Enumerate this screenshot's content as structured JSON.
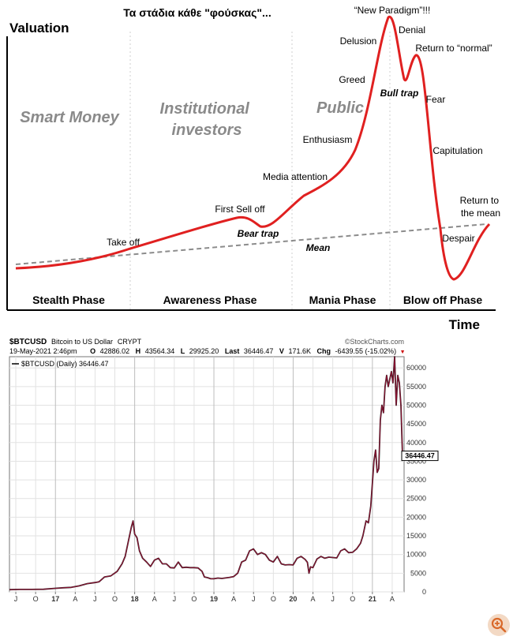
{
  "chart_data": [
    {
      "type": "line",
      "title": "Τα στάδια κάθε \"φούσκας\"...",
      "ylabel": "Valuation",
      "xlabel": "Time",
      "phases": [
        "Stealth Phase",
        "Awareness Phase",
        "Mania Phase",
        "Blow off Phase"
      ],
      "investor_groups": [
        "Smart Money",
        "Institutional investors",
        "Public"
      ],
      "annotations": [
        "Take off",
        "First Sell off",
        "Bear trap",
        "Media attention",
        "Enthusiasm",
        "Greed",
        "Delusion",
        "“New Paradigm”!!!",
        "Denial",
        "Bull trap",
        "Return to “normal”",
        "Fear",
        "Capitulation",
        "Despair",
        "Return to the mean",
        "Mean"
      ],
      "colors": {
        "curve": "#e02020",
        "mean": "#8c8c8c",
        "group_text": "#8a8a8a",
        "divider": "#cfcfcf"
      }
    },
    {
      "type": "line",
      "header": {
        "symbol": "$BTCUSD",
        "name": "Bitcoin to US Dollar",
        "exchange": "CRYPT",
        "source": "©StockCharts.com",
        "date": "19-May-2021 2:46pm",
        "open_label": "O",
        "open": "42886.02",
        "high_label": "H",
        "high": "43564.34",
        "low_label": "L",
        "low": "29925.20",
        "last_label": "Last",
        "last": "36446.47",
        "volume_label": "V",
        "volume": "171.6K",
        "change_label": "Chg",
        "change": "-6439.55 (-15.02%)",
        "change_marker": "▼"
      },
      "legend": "$BTCUSD (Daily) 36446.47",
      "last_value_label": "36446.47",
      "y_ticks": [
        0,
        5000,
        10000,
        15000,
        20000,
        25000,
        30000,
        35000,
        40000,
        45000,
        50000,
        55000,
        60000
      ],
      "ylim": [
        0,
        63000
      ],
      "x_ticks": [
        {
          "label": "J",
          "x": 2016.5,
          "bold": false
        },
        {
          "label": "O",
          "x": 2016.75,
          "bold": false
        },
        {
          "label": "17",
          "x": 2017.0,
          "bold": true
        },
        {
          "label": "A",
          "x": 2017.25,
          "bold": false
        },
        {
          "label": "J",
          "x": 2017.5,
          "bold": false
        },
        {
          "label": "O",
          "x": 2017.75,
          "bold": false
        },
        {
          "label": "18",
          "x": 2018.0,
          "bold": true
        },
        {
          "label": "A",
          "x": 2018.25,
          "bold": false
        },
        {
          "label": "J",
          "x": 2018.5,
          "bold": false
        },
        {
          "label": "O",
          "x": 2018.75,
          "bold": false
        },
        {
          "label": "19",
          "x": 2019.0,
          "bold": true
        },
        {
          "label": "A",
          "x": 2019.25,
          "bold": false
        },
        {
          "label": "J",
          "x": 2019.5,
          "bold": false
        },
        {
          "label": "O",
          "x": 2019.75,
          "bold": false
        },
        {
          "label": "20",
          "x": 2020.0,
          "bold": true
        },
        {
          "label": "A",
          "x": 2020.25,
          "bold": false
        },
        {
          "label": "J",
          "x": 2020.5,
          "bold": false
        },
        {
          "label": "O",
          "x": 2020.75,
          "bold": false
        },
        {
          "label": "21",
          "x": 2021.0,
          "bold": true
        },
        {
          "label": "A",
          "x": 2021.25,
          "bold": false
        }
      ],
      "xlim": [
        2016.42,
        2021.4
      ],
      "series": [
        {
          "name": "$BTCUSD",
          "x": [
            2016.42,
            2016.55,
            2016.7,
            2016.85,
            2017.0,
            2017.1,
            2017.2,
            2017.3,
            2017.4,
            2017.5,
            2017.55,
            2017.62,
            2017.7,
            2017.78,
            2017.84,
            2017.88,
            2017.92,
            2017.96,
            2017.98,
            2018.0,
            2018.03,
            2018.06,
            2018.1,
            2018.15,
            2018.2,
            2018.25,
            2018.3,
            2018.35,
            2018.4,
            2018.45,
            2018.5,
            2018.55,
            2018.6,
            2018.65,
            2018.7,
            2018.75,
            2018.8,
            2018.85,
            2018.88,
            2018.92,
            2018.96,
            2019.0,
            2019.05,
            2019.1,
            2019.2,
            2019.25,
            2019.3,
            2019.35,
            2019.4,
            2019.45,
            2019.5,
            2019.55,
            2019.6,
            2019.65,
            2019.7,
            2019.75,
            2019.8,
            2019.85,
            2019.9,
            2019.95,
            2020.0,
            2020.05,
            2020.1,
            2020.15,
            2020.18,
            2020.2,
            2020.22,
            2020.25,
            2020.3,
            2020.35,
            2020.4,
            2020.45,
            2020.5,
            2020.55,
            2020.6,
            2020.65,
            2020.7,
            2020.75,
            2020.8,
            2020.85,
            2020.88,
            2020.92,
            2020.95,
            2020.98,
            2021.0,
            2021.02,
            2021.04,
            2021.06,
            2021.08,
            2021.1,
            2021.12,
            2021.14,
            2021.16,
            2021.18,
            2021.2,
            2021.22,
            2021.24,
            2021.26,
            2021.28,
            2021.3,
            2021.32,
            2021.34,
            2021.36,
            2021.38
          ],
          "values": [
            600,
            650,
            650,
            700,
            950,
            1100,
            1200,
            1600,
            2200,
            2500,
            2700,
            4000,
            4300,
            5500,
            7500,
            9500,
            13500,
            17500,
            19000,
            15500,
            14500,
            11000,
            9000,
            8000,
            6800,
            8500,
            9000,
            7500,
            7500,
            6500,
            6400,
            8000,
            6500,
            6600,
            6500,
            6500,
            6400,
            5500,
            4000,
            3800,
            3500,
            3500,
            3700,
            3600,
            3900,
            4100,
            5000,
            8000,
            8500,
            11000,
            11500,
            10000,
            10500,
            10000,
            8500,
            8000,
            9500,
            7500,
            7200,
            7300,
            7200,
            9000,
            9500,
            8700,
            7900,
            5000,
            6700,
            6500,
            8800,
            9500,
            9000,
            9300,
            9200,
            9100,
            11000,
            11500,
            10500,
            10600,
            11500,
            13000,
            15000,
            19000,
            18500,
            23000,
            29000,
            35000,
            38000,
            32000,
            33000,
            46000,
            50000,
            48000,
            55000,
            58000,
            55000,
            57000,
            59000,
            56000,
            63000,
            50000,
            58000,
            56000,
            50000,
            36446
          ]
        }
      ],
      "colors": {
        "line": "#8b1030",
        "shadow": "#000000",
        "grid": "#e2e2e2",
        "year_grid": "#bdbdbd",
        "change": "#cc0000"
      }
    }
  ]
}
